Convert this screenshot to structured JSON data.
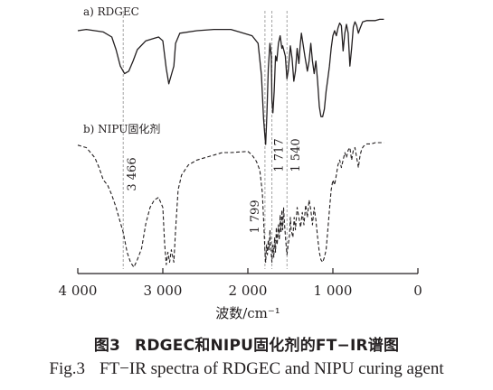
{
  "chart_data": {
    "type": "line",
    "xlabel": "波数/cm⁻¹",
    "x_reversed": true,
    "xlim": [
      4000,
      0
    ],
    "xticks": [
      4000,
      3000,
      2000,
      1000,
      0
    ],
    "xtick_labels": [
      "4 000",
      "3 000",
      "2 000",
      "1 000",
      "0"
    ],
    "ylabel": "",
    "grid": false,
    "legend": "none",
    "series": [
      {
        "name": "a) RDGEC",
        "style": "solid",
        "y_scale": "relative transmittance (offset, upper trace)",
        "points": [
          [
            4000,
            0.9
          ],
          [
            3900,
            0.91
          ],
          [
            3800,
            0.9
          ],
          [
            3700,
            0.89
          ],
          [
            3600,
            0.85
          ],
          [
            3550,
            0.75
          ],
          [
            3500,
            0.62
          ],
          [
            3450,
            0.56
          ],
          [
            3400,
            0.58
          ],
          [
            3350,
            0.66
          ],
          [
            3300,
            0.75
          ],
          [
            3200,
            0.82
          ],
          [
            3100,
            0.84
          ],
          [
            3050,
            0.85
          ],
          [
            3000,
            0.82
          ],
          [
            2960,
            0.6
          ],
          [
            2930,
            0.48
          ],
          [
            2900,
            0.55
          ],
          [
            2870,
            0.62
          ],
          [
            2850,
            0.8
          ],
          [
            2800,
            0.88
          ],
          [
            2600,
            0.9
          ],
          [
            2400,
            0.91
          ],
          [
            2200,
            0.91
          ],
          [
            2100,
            0.89
          ],
          [
            1950,
            0.86
          ],
          [
            1880,
            0.8
          ],
          [
            1840,
            0.55
          ],
          [
            1815,
            0.2
          ],
          [
            1799,
            0.06
          ],
          [
            1790,
            0.0
          ],
          [
            1775,
            0.25
          ],
          [
            1760,
            0.6
          ],
          [
            1740,
            0.8
          ],
          [
            1725,
            0.7
          ],
          [
            1717,
            0.35
          ],
          [
            1705,
            0.25
          ],
          [
            1690,
            0.42
          ],
          [
            1675,
            0.7
          ],
          [
            1660,
            0.66
          ],
          [
            1640,
            0.8
          ],
          [
            1620,
            0.86
          ],
          [
            1600,
            0.76
          ],
          [
            1590,
            0.78
          ],
          [
            1560,
            0.7
          ],
          [
            1540,
            0.52
          ],
          [
            1525,
            0.58
          ],
          [
            1500,
            0.78
          ],
          [
            1480,
            0.68
          ],
          [
            1460,
            0.5
          ],
          [
            1440,
            0.58
          ],
          [
            1420,
            0.76
          ],
          [
            1400,
            0.64
          ],
          [
            1385,
            0.78
          ],
          [
            1370,
            0.88
          ],
          [
            1330,
            0.7
          ],
          [
            1300,
            0.58
          ],
          [
            1280,
            0.66
          ],
          [
            1260,
            0.8
          ],
          [
            1240,
            0.66
          ],
          [
            1220,
            0.56
          ],
          [
            1200,
            0.66
          ],
          [
            1180,
            0.5
          ],
          [
            1160,
            0.3
          ],
          [
            1140,
            0.22
          ],
          [
            1120,
            0.22
          ],
          [
            1100,
            0.28
          ],
          [
            1080,
            0.42
          ],
          [
            1060,
            0.52
          ],
          [
            1040,
            0.62
          ],
          [
            1020,
            0.76
          ],
          [
            1000,
            0.86
          ],
          [
            980,
            0.9
          ],
          [
            960,
            0.86
          ],
          [
            940,
            0.92
          ],
          [
            920,
            0.96
          ],
          [
            900,
            0.94
          ],
          [
            880,
            0.74
          ],
          [
            860,
            0.88
          ],
          [
            840,
            0.95
          ],
          [
            820,
            0.88
          ],
          [
            800,
            0.62
          ],
          [
            780,
            0.76
          ],
          [
            760,
            0.93
          ],
          [
            740,
            0.97
          ],
          [
            720,
            0.94
          ],
          [
            700,
            0.88
          ],
          [
            680,
            0.92
          ],
          [
            650,
            0.97
          ],
          [
            600,
            0.98
          ],
          [
            550,
            0.98
          ],
          [
            500,
            0.98
          ],
          [
            450,
            0.99
          ],
          [
            400,
            0.99
          ]
        ]
      },
      {
        "name": "b) NIPU固化剂",
        "style": "dashed",
        "y_scale": "relative transmittance (offset, lower trace)",
        "points": [
          [
            4000,
            0.98
          ],
          [
            3900,
            0.96
          ],
          [
            3850,
            0.92
          ],
          [
            3800,
            0.88
          ],
          [
            3750,
            0.8
          ],
          [
            3700,
            0.7
          ],
          [
            3650,
            0.66
          ],
          [
            3600,
            0.58
          ],
          [
            3550,
            0.48
          ],
          [
            3500,
            0.36
          ],
          [
            3466,
            0.28
          ],
          [
            3420,
            0.12
          ],
          [
            3380,
            0.04
          ],
          [
            3340,
            0.0
          ],
          [
            3300,
            0.06
          ],
          [
            3250,
            0.15
          ],
          [
            3200,
            0.35
          ],
          [
            3150,
            0.48
          ],
          [
            3100,
            0.54
          ],
          [
            3050,
            0.56
          ],
          [
            3000,
            0.48
          ],
          [
            2980,
            0.2
          ],
          [
            2960,
            0.02
          ],
          [
            2940,
            0.12
          ],
          [
            2920,
            0.04
          ],
          [
            2900,
            0.14
          ],
          [
            2870,
            0.04
          ],
          [
            2850,
            0.3
          ],
          [
            2820,
            0.62
          ],
          [
            2780,
            0.74
          ],
          [
            2700,
            0.82
          ],
          [
            2600,
            0.86
          ],
          [
            2400,
            0.9
          ],
          [
            2300,
            0.92
          ],
          [
            2200,
            0.92
          ],
          [
            2000,
            0.93
          ],
          [
            1950,
            0.9
          ],
          [
            1900,
            0.85
          ],
          [
            1860,
            0.78
          ],
          [
            1830,
            0.6
          ],
          [
            1810,
            0.3
          ],
          [
            1799,
            0.12
          ],
          [
            1790,
            0.04
          ],
          [
            1780,
            0.18
          ],
          [
            1770,
            0.1
          ],
          [
            1760,
            0.22
          ],
          [
            1750,
            0.14
          ],
          [
            1740,
            0.3
          ],
          [
            1730,
            0.16
          ],
          [
            1717,
            0.04
          ],
          [
            1705,
            0.18
          ],
          [
            1695,
            0.08
          ],
          [
            1685,
            0.24
          ],
          [
            1675,
            0.12
          ],
          [
            1665,
            0.32
          ],
          [
            1655,
            0.18
          ],
          [
            1640,
            0.34
          ],
          [
            1630,
            0.22
          ],
          [
            1620,
            0.42
          ],
          [
            1610,
            0.28
          ],
          [
            1600,
            0.46
          ],
          [
            1590,
            0.3
          ],
          [
            1580,
            0.48
          ],
          [
            1570,
            0.36
          ],
          [
            1555,
            0.22
          ],
          [
            1540,
            0.1
          ],
          [
            1525,
            0.18
          ],
          [
            1510,
            0.26
          ],
          [
            1500,
            0.4
          ],
          [
            1490,
            0.3
          ],
          [
            1470,
            0.24
          ],
          [
            1455,
            0.4
          ],
          [
            1440,
            0.3
          ],
          [
            1420,
            0.48
          ],
          [
            1400,
            0.4
          ],
          [
            1380,
            0.32
          ],
          [
            1360,
            0.44
          ],
          [
            1340,
            0.34
          ],
          [
            1320,
            0.5
          ],
          [
            1300,
            0.4
          ],
          [
            1280,
            0.54
          ],
          [
            1260,
            0.46
          ],
          [
            1240,
            0.34
          ],
          [
            1220,
            0.48
          ],
          [
            1200,
            0.38
          ],
          [
            1180,
            0.24
          ],
          [
            1160,
            0.12
          ],
          [
            1140,
            0.06
          ],
          [
            1120,
            0.04
          ],
          [
            1100,
            0.08
          ],
          [
            1080,
            0.14
          ],
          [
            1060,
            0.3
          ],
          [
            1040,
            0.46
          ],
          [
            1020,
            0.62
          ],
          [
            1000,
            0.7
          ],
          [
            980,
            0.66
          ],
          [
            960,
            0.74
          ],
          [
            940,
            0.82
          ],
          [
            920,
            0.86
          ],
          [
            900,
            0.8
          ],
          [
            880,
            0.86
          ],
          [
            860,
            0.92
          ],
          [
            840,
            0.88
          ],
          [
            820,
            0.94
          ],
          [
            800,
            0.96
          ],
          [
            780,
            0.86
          ],
          [
            760,
            0.94
          ],
          [
            740,
            0.96
          ],
          [
            720,
            0.88
          ],
          [
            700,
            0.8
          ],
          [
            680,
            0.9
          ],
          [
            660,
            0.95
          ],
          [
            640,
            0.97
          ],
          [
            600,
            0.99
          ],
          [
            550,
            0.99
          ],
          [
            500,
            1.0
          ],
          [
            450,
            1.0
          ],
          [
            400,
            1.0
          ]
        ]
      }
    ],
    "reference_lines": [
      {
        "x": 3466,
        "label": "3 466"
      },
      {
        "x": 1799,
        "label": "1 799"
      },
      {
        "x": 1717,
        "label": "1 717"
      },
      {
        "x": 1540,
        "label": "1 540"
      }
    ]
  },
  "caption": {
    "cn_fig": "图3",
    "cn_text": "RDGEC和NIPU固化剂的FT−IR谱图",
    "en_fig": "Fig.3",
    "en_text": "FT−IR spectra of RDGEC and NIPU curing agent"
  },
  "colors": {
    "ink": "#231f20",
    "guide": "#9a9a9a"
  }
}
